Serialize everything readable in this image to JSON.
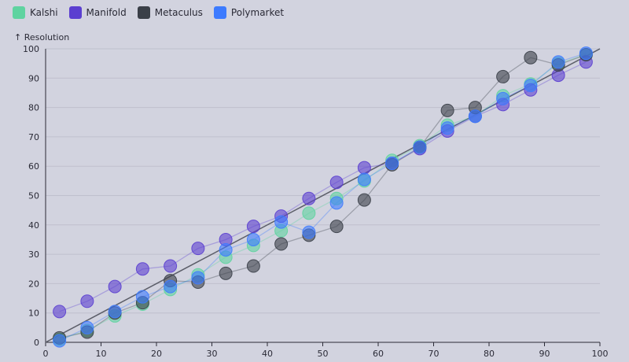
{
  "chart_data": {
    "type": "scatter",
    "ylabel": "↑ Resolution",
    "xlim": [
      0,
      100
    ],
    "ylim": [
      0,
      100
    ],
    "xticks": [
      0,
      10,
      20,
      30,
      40,
      50,
      60,
      70,
      80,
      90,
      100
    ],
    "yticks": [
      0,
      10,
      20,
      30,
      40,
      50,
      60,
      70,
      80,
      90,
      100
    ],
    "grid": "horizontal",
    "legend_position": "top-left",
    "diagonal_reference": true,
    "series": [
      {
        "name": "Kalshi",
        "color": "#5fd3a0",
        "points": [
          [
            2.5,
            1
          ],
          [
            7.5,
            4
          ],
          [
            12.5,
            9
          ],
          [
            17.5,
            13
          ],
          [
            22.5,
            18
          ],
          [
            27.5,
            23
          ],
          [
            32.5,
            29
          ],
          [
            37.5,
            33
          ],
          [
            42.5,
            38
          ],
          [
            47.5,
            44
          ],
          [
            52.5,
            49
          ],
          [
            57.5,
            55
          ],
          [
            62.5,
            62
          ],
          [
            67.5,
            67
          ],
          [
            72.5,
            74
          ],
          [
            77.5,
            77
          ],
          [
            82.5,
            84
          ],
          [
            87.5,
            88
          ],
          [
            92.5,
            95
          ],
          [
            97.5,
            98
          ]
        ]
      },
      {
        "name": "Manifold",
        "color": "#5b3fd0",
        "points": [
          [
            2.5,
            10.5
          ],
          [
            7.5,
            14
          ],
          [
            12.5,
            19
          ],
          [
            17.5,
            25
          ],
          [
            22.5,
            26
          ],
          [
            27.5,
            32
          ],
          [
            32.5,
            35
          ],
          [
            37.5,
            39.5
          ],
          [
            42.5,
            43
          ],
          [
            47.5,
            49
          ],
          [
            52.5,
            54.5
          ],
          [
            57.5,
            59.5
          ],
          [
            62.5,
            61
          ],
          [
            67.5,
            66
          ],
          [
            72.5,
            72
          ],
          [
            77.5,
            77
          ],
          [
            82.5,
            81
          ],
          [
            87.5,
            86
          ],
          [
            92.5,
            91
          ],
          [
            97.5,
            95.5
          ]
        ]
      },
      {
        "name": "Metaculus",
        "color": "#3a3f48",
        "points": [
          [
            2.5,
            1.5
          ],
          [
            7.5,
            3.5
          ],
          [
            12.5,
            10
          ],
          [
            17.5,
            13.5
          ],
          [
            22.5,
            21
          ],
          [
            27.5,
            20.5
          ],
          [
            32.5,
            23.5
          ],
          [
            37.5,
            26
          ],
          [
            42.5,
            33.5
          ],
          [
            47.5,
            36.5
          ],
          [
            52.5,
            39.5
          ],
          [
            57.5,
            48.5
          ],
          [
            62.5,
            60.5
          ],
          [
            67.5,
            66.5
          ],
          [
            72.5,
            79
          ],
          [
            77.5,
            80
          ],
          [
            82.5,
            90.5
          ],
          [
            87.5,
            97
          ],
          [
            92.5,
            94.5
          ],
          [
            97.5,
            98
          ]
        ]
      },
      {
        "name": "Polymarket",
        "color": "#3d7bff",
        "points": [
          [
            2.5,
            0.5
          ],
          [
            7.5,
            5
          ],
          [
            12.5,
            10.5
          ],
          [
            17.5,
            15.5
          ],
          [
            22.5,
            19
          ],
          [
            27.5,
            22
          ],
          [
            32.5,
            31.5
          ],
          [
            37.5,
            35
          ],
          [
            42.5,
            41
          ],
          [
            47.5,
            37.5
          ],
          [
            52.5,
            47.5
          ],
          [
            57.5,
            55.5
          ],
          [
            62.5,
            61
          ],
          [
            67.5,
            66.5
          ],
          [
            72.5,
            73
          ],
          [
            77.5,
            77
          ],
          [
            82.5,
            83
          ],
          [
            87.5,
            87.5
          ],
          [
            92.5,
            95.5
          ],
          [
            97.5,
            98.5
          ]
        ]
      }
    ]
  }
}
